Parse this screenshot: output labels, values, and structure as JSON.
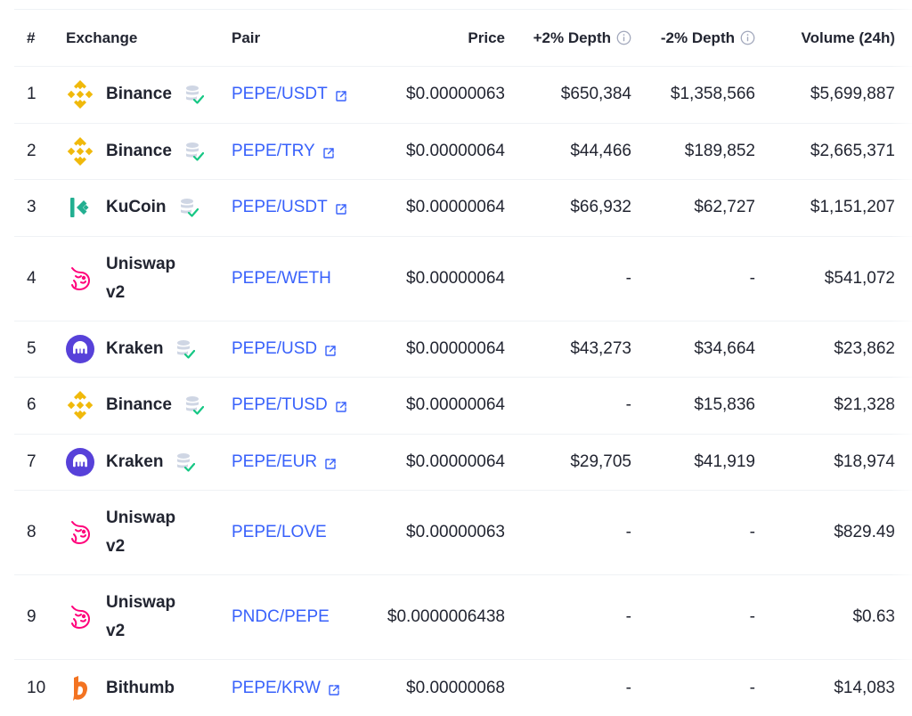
{
  "header": {
    "rank": "#",
    "exchange": "Exchange",
    "pair": "Pair",
    "price": "Price",
    "plus_depth": "+2% Depth",
    "minus_depth": "-2% Depth",
    "volume": "Volume (24h)"
  },
  "rows": [
    {
      "rank": "1",
      "exchange": "Binance",
      "logo": "binance-logo",
      "verified": true,
      "pair": "PEPE/USDT",
      "external": true,
      "price": "$0.00000063",
      "plus_depth": "$650,384",
      "minus_depth": "$1,358,566",
      "volume": "$5,699,887"
    },
    {
      "rank": "2",
      "exchange": "Binance",
      "logo": "binance-logo",
      "verified": true,
      "pair": "PEPE/TRY",
      "external": true,
      "price": "$0.00000064",
      "plus_depth": "$44,466",
      "minus_depth": "$189,852",
      "volume": "$2,665,371"
    },
    {
      "rank": "3",
      "exchange": "KuCoin",
      "logo": "kucoin-logo",
      "verified": true,
      "pair": "PEPE/USDT",
      "external": true,
      "price": "$0.00000064",
      "plus_depth": "$66,932",
      "minus_depth": "$62,727",
      "volume": "$1,151,207"
    },
    {
      "rank": "4",
      "exchange": "Uniswap v2",
      "logo": "uniswap-logo",
      "verified": false,
      "pair": "PEPE/WETH",
      "external": false,
      "price": "$0.00000064",
      "plus_depth": "-",
      "minus_depth": "-",
      "volume": "$541,072"
    },
    {
      "rank": "5",
      "exchange": "Kraken",
      "logo": "kraken-logo",
      "verified": true,
      "pair": "PEPE/USD",
      "external": true,
      "price": "$0.00000064",
      "plus_depth": "$43,273",
      "minus_depth": "$34,664",
      "volume": "$23,862"
    },
    {
      "rank": "6",
      "exchange": "Binance",
      "logo": "binance-logo",
      "verified": true,
      "pair": "PEPE/TUSD",
      "external": true,
      "price": "$0.00000064",
      "plus_depth": "-",
      "minus_depth": "$15,836",
      "volume": "$21,328"
    },
    {
      "rank": "7",
      "exchange": "Kraken",
      "logo": "kraken-logo",
      "verified": true,
      "pair": "PEPE/EUR",
      "external": true,
      "price": "$0.00000064",
      "plus_depth": "$29,705",
      "minus_depth": "$41,919",
      "volume": "$18,974"
    },
    {
      "rank": "8",
      "exchange": "Uniswap v2",
      "logo": "uniswap-logo",
      "verified": false,
      "pair": "PEPE/LOVE",
      "external": false,
      "price": "$0.00000063",
      "plus_depth": "-",
      "minus_depth": "-",
      "volume": "$829.49"
    },
    {
      "rank": "9",
      "exchange": "Uniswap v2",
      "logo": "uniswap-logo",
      "verified": false,
      "pair": "PNDC/PEPE",
      "external": false,
      "price": "$0.0000006438",
      "plus_depth": "-",
      "minus_depth": "-",
      "volume": "$0.63"
    },
    {
      "rank": "10",
      "exchange": "Bithumb",
      "logo": "bithumb-logo",
      "verified": false,
      "pair": "PEPE/KRW",
      "external": true,
      "price": "$0.00000068",
      "plus_depth": "-",
      "minus_depth": "-",
      "volume": "$14,083"
    }
  ],
  "colors": {
    "link": "#3861fb",
    "binance": "#f0b90b",
    "kucoin": "#23af91",
    "kraken": "#5741d9",
    "uniswap": "#ff007a",
    "bithumb": "#f37321",
    "verified_check": "#16c784"
  }
}
